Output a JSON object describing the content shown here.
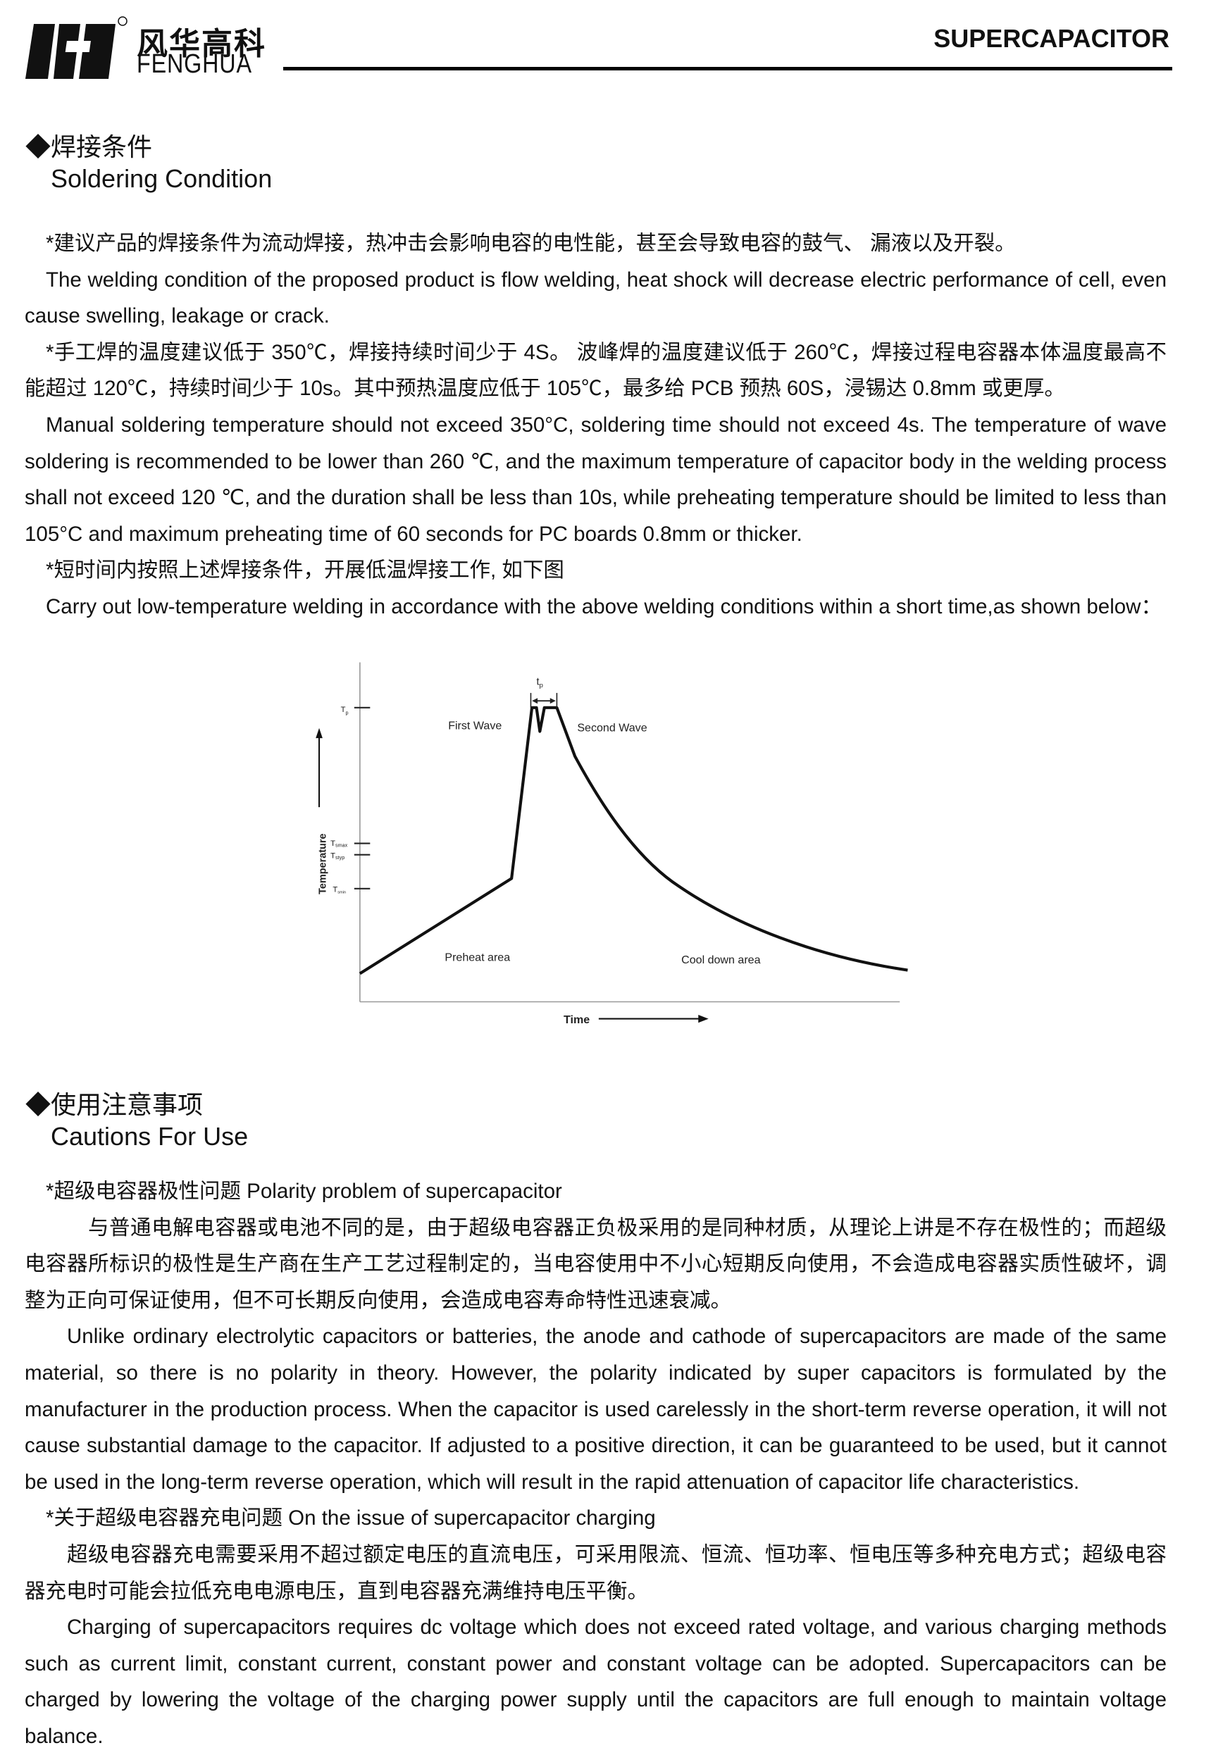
{
  "header": {
    "brand_cn": "风华高科",
    "brand_en": "FENGHUA",
    "title": "SUPERCAPACITOR"
  },
  "soldering": {
    "heading_cn": "◆焊接条件",
    "heading_en": "Soldering Condition",
    "p1_cn": "*建议产品的焊接条件为流动焊接，热冲击会影响电容的电性能，甚至会导致电容的鼓气、 漏液以及开裂。",
    "p1_en": "The welding condition of the proposed product is flow welding, heat shock will decrease electric performance of cell, even cause swelling, leakage or crack.",
    "p2_cn": "*手工焊的温度建议低于 350℃，焊接持续时间少于 4S。 波峰焊的温度建议低于 260℃，焊接过程电容器本体温度最高不能超过 120℃，持续时间少于 10s。其中预热温度应低于 105℃，最多给 PCB 预热 60S，浸锡达 0.8mm 或更厚。",
    "p2_en": "Manual soldering temperature should not exceed 350°C, soldering time should not exceed 4s. The temperature of wave soldering is recommended to be lower than 260 ℃, and the maximum temperature of capacitor body in the welding process shall not exceed 120 ℃, and the duration shall be less than 10s, while preheating temperature should be limited to less than 105°C and maximum preheating time of 60 seconds for PC boards 0.8mm or thicker.",
    "p3_cn": "*短时间内按照上述焊接条件，开展低温焊接工作, 如下图",
    "p3_en": "Carry out low-temperature welding in accordance with the above welding conditions within a short time,as shown below："
  },
  "diagram": {
    "y_axis_label": "Temperature",
    "x_axis_label": "Time",
    "tick_tp": "T",
    "tick_tp_sub": "p",
    "tick_tsmax": "T",
    "tick_tsmax_sub": "smax",
    "tick_tstyp": "T",
    "tick_tstyp_sub": "styp",
    "tick_tsmin": "T",
    "tick_tsmin_sub": "smin",
    "peak_duration": "t",
    "peak_duration_sub": "p",
    "first_wave": "First Wave",
    "second_wave": "Second Wave",
    "preheat_area": "Preheat area",
    "cool_down_area": "Cool down area"
  },
  "cautions": {
    "heading_cn": "◆使用注意事项",
    "heading_en": "Cautions For Use",
    "polarity_title": "*超级电容器极性问题  Polarity problem of supercapacitor",
    "polarity_cn": "与普通电解电容器或电池不同的是，由于超级电容器正负极采用的是同种材质，从理论上讲是不存在极性的；而超级电容器所标识的极性是生产商在生产工艺过程制定的，当电容使用中不小心短期反向使用，不会造成电容器实质性破坏，调整为正向可保证使用，但不可长期反向使用，会造成电容寿命特性迅速衰减。",
    "polarity_en": "Unlike ordinary electrolytic capacitors or batteries, the anode and cathode of supercapacitors are made of the same material, so there is no polarity in theory. However, the polarity indicated by super capacitors is formulated by the manufacturer in the production process. When the capacitor is used carelessly in the short-term reverse operation, it will not cause substantial damage to the capacitor. If adjusted to a positive direction, it can be guaranteed to be used, but it cannot be used in the long-term reverse operation, which will result in the rapid attenuation of capacitor life characteristics.",
    "charging_title": "*关于超级电容器充电问题  On the issue of supercapacitor charging",
    "charging_cn": "超级电容器充电需要采用不超过额定电压的直流电压，可采用限流、恒流、恒功率、恒电压等多种充电方式；超级电容器充电时可能会拉低充电电源电压，直到电容器充满维持电压平衡。",
    "charging_en": "Charging of supercapacitors requires dc voltage which does not exceed rated voltage, and various charging methods such as current limit, constant current, constant power and constant voltage can be adopted. Supercapacitors can be charged by lowering the voltage of the charging power supply until the capacitors are full enough to maintain voltage balance."
  }
}
